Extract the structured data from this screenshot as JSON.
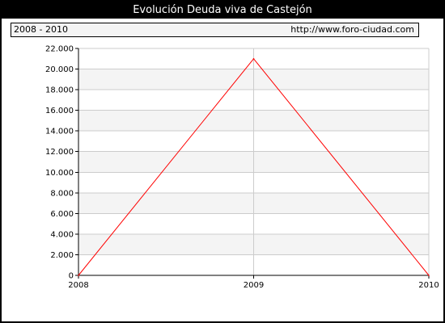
{
  "title": "Evolución Deuda viva de Castejón",
  "info": {
    "period": "2008 - 2010",
    "url": "http://www.foro-ciudad.com"
  },
  "colors": {
    "background": "#000000",
    "plot_band": "#f4f4f4",
    "line": "#ff0000",
    "grid": "#cccccc"
  },
  "chart_data": {
    "type": "line",
    "title": "Evolución Deuda viva de Castejón",
    "xlabel": "",
    "ylabel": "",
    "x": [
      "2008",
      "2009",
      "2010"
    ],
    "series": [
      {
        "values": [
          0,
          21000,
          0
        ]
      }
    ],
    "ylim": [
      0,
      22000
    ],
    "yticks": [
      0,
      2000,
      4000,
      6000,
      8000,
      10000,
      12000,
      14000,
      16000,
      18000,
      20000,
      22000
    ],
    "ytick_labels": [
      "0",
      "2.000",
      "4.000",
      "6.000",
      "8.000",
      "10.000",
      "12.000",
      "14.000",
      "16.000",
      "18.000",
      "20.000",
      "22.000"
    ],
    "grid": true,
    "legend": "none"
  }
}
